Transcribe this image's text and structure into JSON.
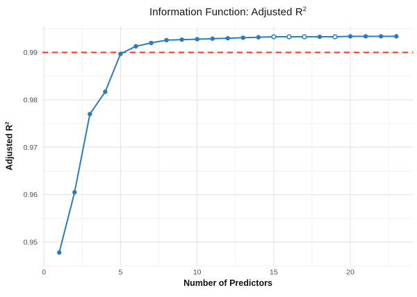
{
  "chart_data": {
    "type": "line",
    "title": {
      "text": "Information Function: Adjusted R",
      "sup": "2"
    },
    "xlabel": "Number of Predictors",
    "ylabel": {
      "text": "Adjusted R",
      "sup": "2"
    },
    "x": [
      1,
      2,
      3,
      4,
      5,
      6,
      7,
      8,
      9,
      10,
      11,
      12,
      13,
      14,
      15,
      16,
      17,
      18,
      19,
      20,
      21,
      22,
      23
    ],
    "y": [
      0.9478,
      0.9605,
      0.977,
      0.9817,
      0.9897,
      0.9913,
      0.992,
      0.9926,
      0.9927,
      0.9928,
      0.9929,
      0.993,
      0.9931,
      0.9932,
      0.9933,
      0.9933,
      0.9933,
      0.9933,
      0.9933,
      0.9934,
      0.9934,
      0.9934,
      0.9934
    ],
    "open_points": [
      15,
      16,
      17,
      19
    ],
    "hline": {
      "y": 0.99,
      "linetype": "dashed",
      "color": "#e42b1e"
    },
    "x_ticks": [
      0,
      5,
      10,
      15,
      20
    ],
    "x_minor": [
      2.5,
      7.5,
      12.5,
      17.5,
      22.5
    ],
    "y_ticks": [
      0.95,
      0.96,
      0.97,
      0.98,
      0.99
    ],
    "y_minor": [
      0.945,
      0.955,
      0.965,
      0.975,
      0.985,
      0.995
    ],
    "xlim": [
      -0.1,
      24.1
    ],
    "ylim": [
      0.945,
      0.9955
    ],
    "grid": true,
    "legend_position": "none",
    "colors": {
      "line": "#2c7bb8",
      "point": "#2c7bb8",
      "open_point_fill": "#ffffff",
      "major_grid": "#e3e3e3",
      "minor_grid": "#f1f1f1",
      "tick_label": "#4d4d4d",
      "background": "#ffffff"
    }
  }
}
